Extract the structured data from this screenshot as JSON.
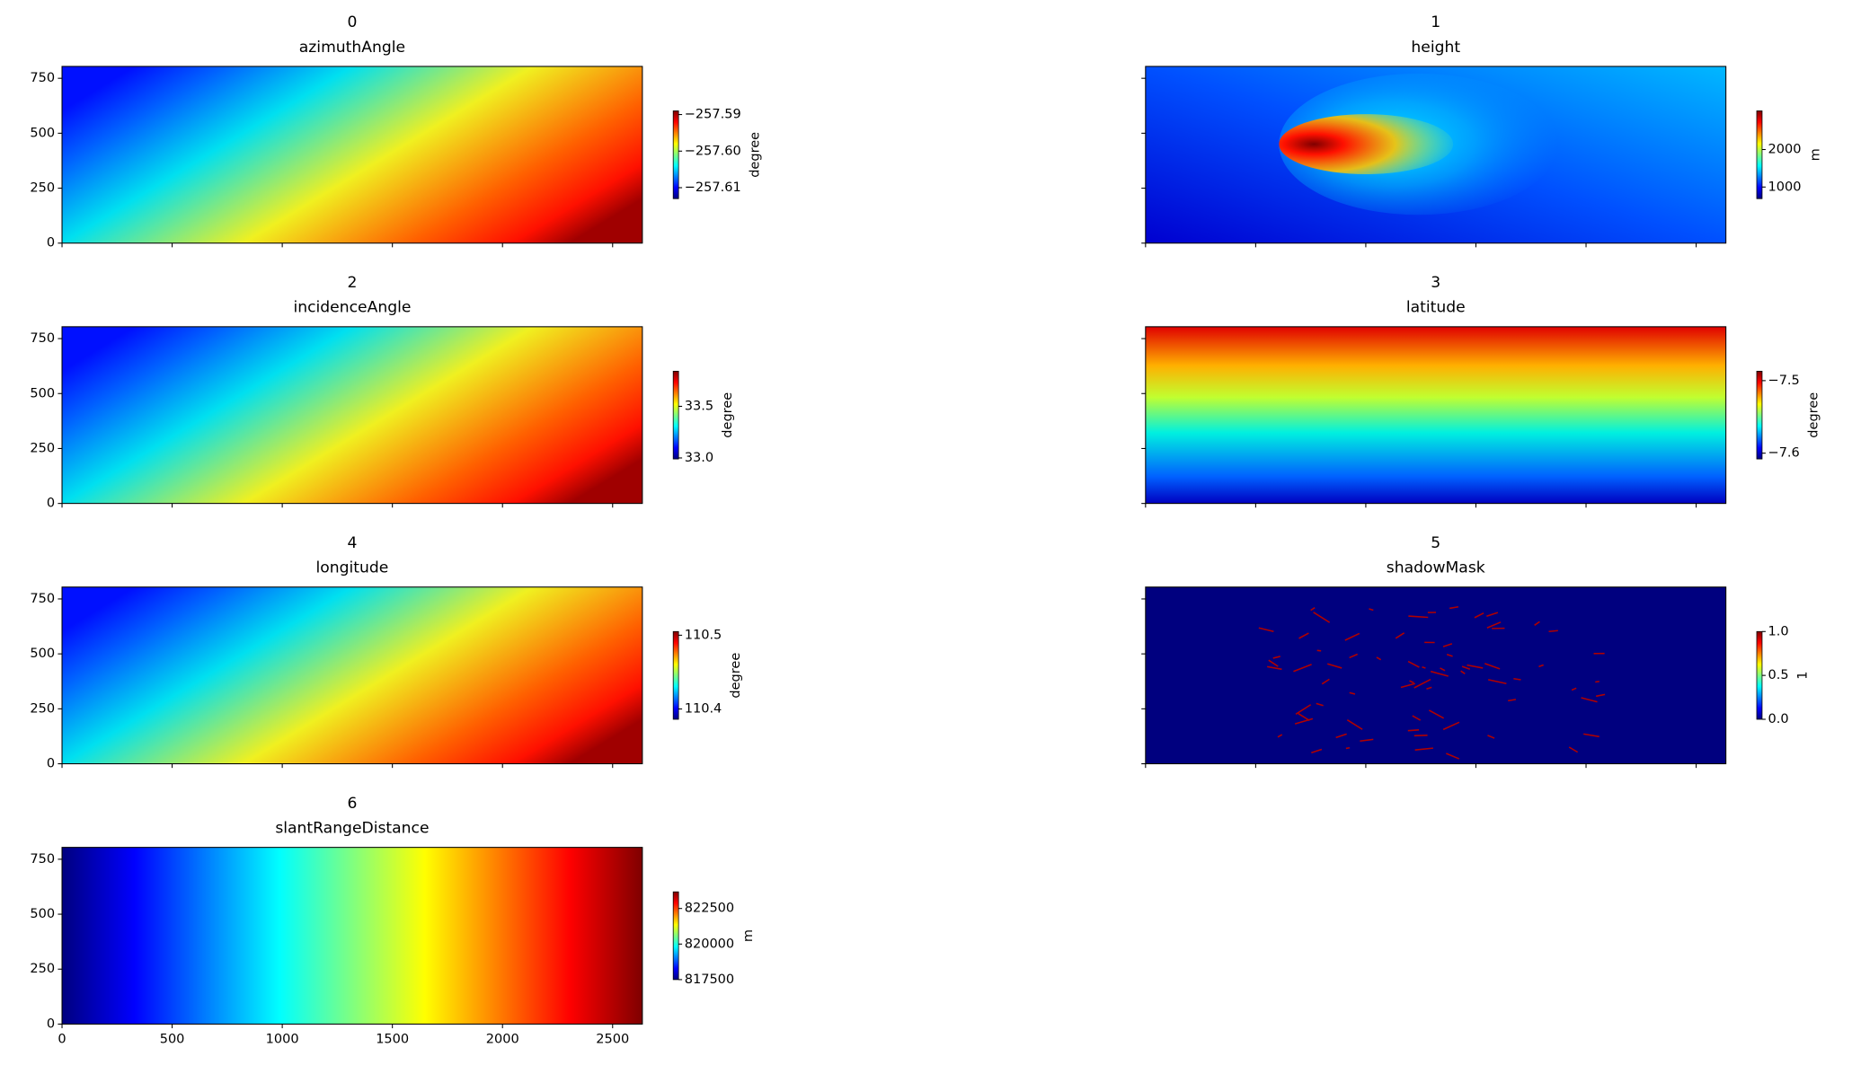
{
  "chart_data": [
    {
      "type": "heatmap",
      "title": "0",
      "subtitle": "azimuthAngle",
      "cmap": "jet",
      "xlim": [
        0,
        2635
      ],
      "xticks": [
        0,
        500,
        1000,
        1500,
        2000,
        2500
      ],
      "show_xtick_labels": false,
      "ylim": [
        0,
        804
      ],
      "yticks": [
        0,
        250,
        500,
        750
      ],
      "show_ytick_labels": true,
      "colorbar": {
        "label": "degree",
        "lim": [
          -257.613,
          -257.589
        ],
        "ticks": [
          {
            "value": -257.61,
            "label": "−257.61"
          },
          {
            "value": -257.6,
            "label": "−257.60"
          },
          {
            "value": -257.59,
            "label": "−257.59"
          }
        ]
      }
    },
    {
      "type": "heatmap",
      "title": "1",
      "subtitle": "height",
      "cmap": "jet",
      "xlim": [
        0,
        2635
      ],
      "xticks": [
        0,
        500,
        1000,
        1500,
        2000,
        2500
      ],
      "show_xtick_labels": false,
      "ylim": [
        0,
        804
      ],
      "yticks": [
        0,
        250,
        500,
        750
      ],
      "show_ytick_labels": false,
      "colorbar": {
        "label": "m",
        "lim": [
          690,
          3030
        ],
        "ticks": [
          1000,
          2000
        ]
      }
    },
    {
      "type": "heatmap",
      "title": "2",
      "subtitle": "incidenceAngle",
      "cmap": "jet",
      "xlim": [
        0,
        2635
      ],
      "xticks": [
        0,
        500,
        1000,
        1500,
        2000,
        2500
      ],
      "show_xtick_labels": false,
      "ylim": [
        0,
        804
      ],
      "yticks": [
        0,
        250,
        500,
        750
      ],
      "show_ytick_labels": true,
      "colorbar": {
        "label": "degree",
        "lim": [
          32.99,
          33.84
        ],
        "ticks": [
          {
            "value": 33,
            "label": "33.0"
          },
          33.5
        ]
      }
    },
    {
      "type": "heatmap",
      "title": "3",
      "subtitle": "latitude",
      "cmap": "jet",
      "xlim": [
        0,
        2635
      ],
      "xticks": [
        0,
        500,
        1000,
        1500,
        2000,
        2500
      ],
      "show_xtick_labels": false,
      "ylim": [
        0,
        804
      ],
      "yticks": [
        0,
        250,
        500,
        750
      ],
      "show_ytick_labels": false,
      "colorbar": {
        "label": "degree",
        "lim": [
          -7.608,
          -7.487
        ],
        "ticks": [
          {
            "value": -7.6,
            "label": "−7.6"
          },
          {
            "value": -7.5,
            "label": "−7.5"
          }
        ]
      }
    },
    {
      "type": "heatmap",
      "title": "4",
      "subtitle": "longitude",
      "cmap": "jet",
      "xlim": [
        0,
        2635
      ],
      "xticks": [
        0,
        500,
        1000,
        1500,
        2000,
        2500
      ],
      "show_xtick_labels": false,
      "ylim": [
        0,
        804
      ],
      "yticks": [
        0,
        250,
        500,
        750
      ],
      "show_ytick_labels": true,
      "colorbar": {
        "label": "degree",
        "lim": [
          110.386,
          110.505
        ],
        "ticks": [
          110.4,
          110.5
        ]
      }
    },
    {
      "type": "heatmap",
      "title": "5",
      "subtitle": "shadowMask",
      "cmap": "jet",
      "xlim": [
        0,
        2635
      ],
      "xticks": [
        0,
        500,
        1000,
        1500,
        2000,
        2500
      ],
      "show_xtick_labels": false,
      "ylim": [
        0,
        804
      ],
      "yticks": [
        0,
        250,
        500,
        750
      ],
      "show_ytick_labels": false,
      "colorbar": {
        "label": "1",
        "lim": [
          0,
          1
        ],
        "ticks": [
          {
            "value": 0,
            "label": "0.0"
          },
          0.5,
          {
            "value": 1,
            "label": "1.0"
          }
        ]
      }
    },
    {
      "type": "heatmap",
      "title": "6",
      "subtitle": "slantRangeDistance",
      "cmap": "jet",
      "xlim": [
        0,
        2635
      ],
      "xticks": [
        0,
        500,
        1000,
        1500,
        2000,
        2500
      ],
      "show_xtick_labels": true,
      "ylim": [
        0,
        804
      ],
      "yticks": [
        0,
        250,
        500,
        750
      ],
      "show_ytick_labels": true,
      "colorbar": {
        "label": "m",
        "lim": [
          817500,
          823670
        ],
        "ticks": [
          817500,
          820000,
          822500
        ]
      }
    }
  ]
}
